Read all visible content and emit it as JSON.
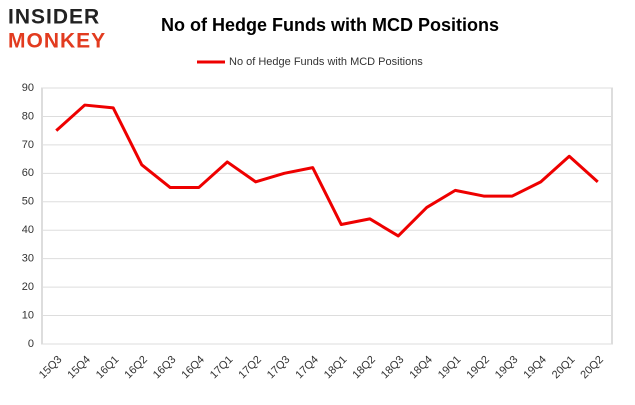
{
  "brand": {
    "line1": "INSIDER",
    "line2": "MONKEY"
  },
  "chart_data": {
    "type": "line",
    "title": "No of Hedge Funds with MCD Positions",
    "categories": [
      "15Q3",
      "15Q4",
      "16Q1",
      "16Q2",
      "16Q3",
      "16Q4",
      "17Q1",
      "17Q2",
      "17Q3",
      "17Q4",
      "18Q1",
      "18Q2",
      "18Q3",
      "18Q4",
      "19Q1",
      "19Q2",
      "19Q3",
      "19Q4",
      "20Q1",
      "20Q2"
    ],
    "series": [
      {
        "name": "No of Hedge Funds with MCD Positions",
        "color": "#ee0000",
        "values": [
          75,
          84,
          83,
          63,
          55,
          55,
          64,
          57,
          60,
          62,
          42,
          44,
          38,
          48,
          54,
          52,
          52,
          57,
          66,
          57
        ]
      }
    ],
    "ylim": [
      0,
      90
    ],
    "yticks": [
      0,
      10,
      20,
      30,
      40,
      50,
      60,
      70,
      80,
      90
    ],
    "grid": true,
    "legend": "top"
  }
}
